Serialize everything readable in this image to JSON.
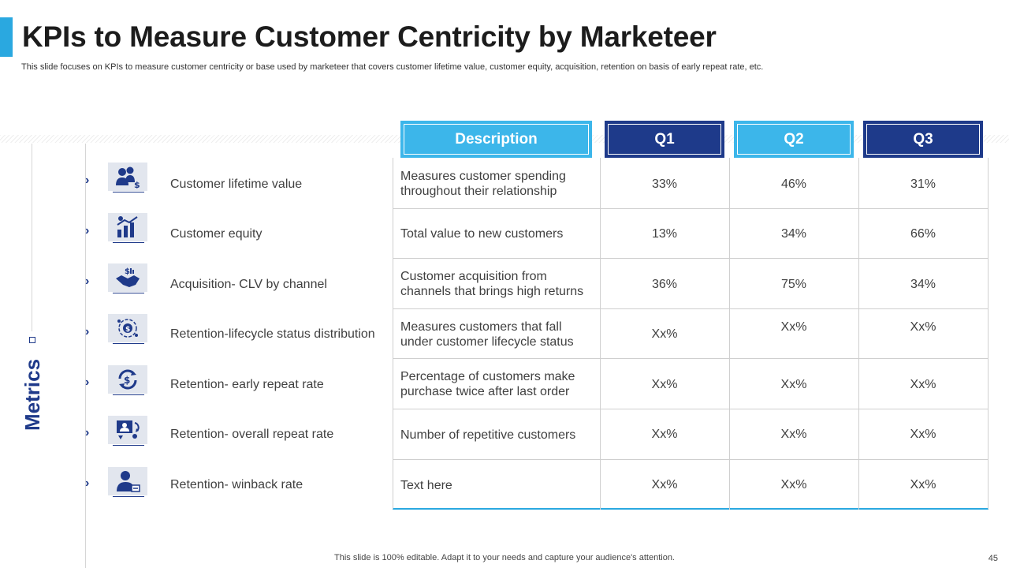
{
  "title": "KPIs to Measure Customer Centricity by Marketeer",
  "subtitle": "This slide focuses on KPIs to measure customer centricity or base used by marketeer that covers customer lifetime value, customer equity, acquisition, retention on basis of early repeat rate, etc.",
  "side_label": "Metrics",
  "headers": {
    "description": "Description",
    "q1": "Q1",
    "q2": "Q2",
    "q3": "Q3"
  },
  "colors": {
    "accent_light": "#3cb6ea",
    "accent_dark": "#1e3a8a"
  },
  "rows": [
    {
      "metric": "Customer lifetime value",
      "icon": "customer-value-icon",
      "desc_line1": "Measures customer spending",
      "desc_line2": "throughout  their relationship",
      "q1": "33%",
      "q2": "46%",
      "q3": "31%"
    },
    {
      "metric": "Customer equity",
      "icon": "growth-chart-icon",
      "desc_line1": "Total value to new customers",
      "desc_line2": "",
      "q1": "13%",
      "q2": "34%",
      "q3": "66%"
    },
    {
      "metric": "Acquisition- CLV by channel",
      "icon": "handshake-icon",
      "desc_line1": "Customer acquisition from",
      "desc_line2": "channels that brings high returns",
      "q1": "36%",
      "q2": "75%",
      "q3": "34%"
    },
    {
      "metric": "Retention-lifecycle  status distribution",
      "icon": "lifecycle-icon",
      "desc_line1": "Measures customers that fall",
      "desc_line2": "under customer lifecycle status",
      "q1": "Xx%",
      "q2": "Xx%",
      "q3": "Xx%"
    },
    {
      "metric": "Retention- early repeat rate",
      "icon": "repeat-dollar-icon",
      "desc_line1": "Percentage of customers make",
      "desc_line2": "purchase twice after last order",
      "q1": "Xx%",
      "q2": "Xx%",
      "q3": "Xx%"
    },
    {
      "metric": "Retention- overall repeat rate",
      "icon": "repeat-customer-icon",
      "desc_line1": "Number of repetitive customers",
      "desc_line2": "",
      "q1": "Xx%",
      "q2": "Xx%",
      "q3": "Xx%"
    },
    {
      "metric": "Retention- winback rate",
      "icon": "winback-user-icon",
      "desc_line1": "Text here",
      "desc_line2": "",
      "q1": "Xx%",
      "q2": "Xx%",
      "q3": "Xx%"
    }
  ],
  "footer": "This slide is 100% editable. Adapt it to your needs and capture your audience's attention.",
  "page_number": "45"
}
